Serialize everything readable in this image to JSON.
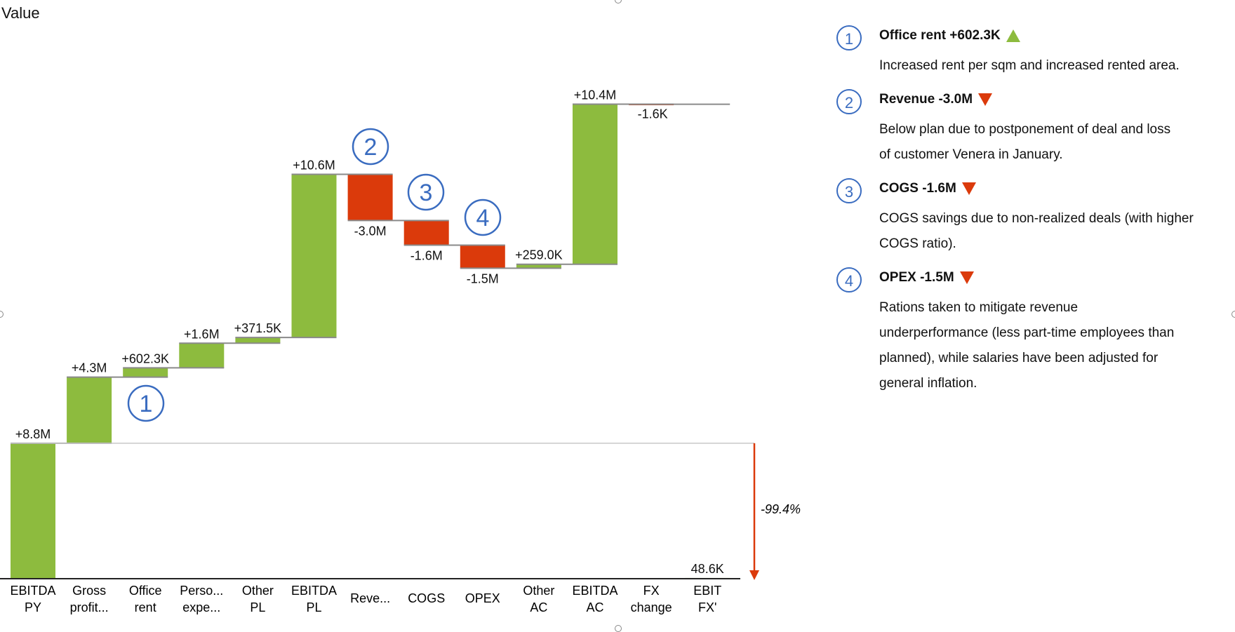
{
  "chart_data": {
    "type": "waterfall",
    "title": "Value",
    "categories": [
      [
        "EBITDA",
        "PY"
      ],
      [
        "Gross",
        "profit..."
      ],
      [
        "Office",
        "rent"
      ],
      [
        "Perso...",
        "expe..."
      ],
      [
        "Other",
        "PL"
      ],
      [
        "EBITDA",
        "PL"
      ],
      [
        "Reve..."
      ],
      [
        "COGS"
      ],
      [
        "OPEX"
      ],
      [
        "Other",
        "AC"
      ],
      [
        "EBITDA",
        "AC"
      ],
      [
        "FX",
        "change"
      ],
      [
        "EBIT",
        "FX'"
      ]
    ],
    "values": [
      8.8,
      4.3,
      0.6023,
      1.6,
      0.3715,
      10.6,
      -3.0,
      -1.6,
      -1.5,
      0.259,
      10.4,
      -0.0016,
      0.0486
    ],
    "kinds": [
      "total",
      "delta",
      "delta",
      "delta",
      "delta",
      "delta",
      "delta",
      "delta",
      "delta",
      "delta",
      "delta",
      "delta",
      "total"
    ],
    "data_labels": [
      "+8.8M",
      "+4.3M",
      "+602.3K",
      "+1.6M",
      "+371.5K",
      "+10.6M",
      "-3.0M",
      "-1.6M",
      "-1.5M",
      "+259.0K",
      "+10.4M",
      "-1.6K",
      "48.6K"
    ],
    "units": "M",
    "comparison": {
      "label": "-99.4%",
      "from_category": "EBITDA PY",
      "to_category": "EBIT FX'"
    },
    "markers": [
      {
        "n": "1",
        "category": "Office rent"
      },
      {
        "n": "2",
        "category": "Reve..."
      },
      {
        "n": "3",
        "category": "COGS"
      },
      {
        "n": "4",
        "category": "OPEX"
      }
    ],
    "colors": {
      "positive": "#8dbb3e",
      "negative": "#db3a0b",
      "arrow": "#db3a0b",
      "marker": "#3a6cc0",
      "connector": "#8a8a8a"
    }
  },
  "notes": [
    {
      "n": "1",
      "title": "Office rent +602.3K",
      "direction": "up",
      "lines": [
        "Increased rent per sqm and increased rented area."
      ]
    },
    {
      "n": "2",
      "title": "Revenue -3.0M",
      "direction": "down",
      "lines": [
        "Below plan due to postponement of deal and loss",
        "of customer Venera in January."
      ]
    },
    {
      "n": "3",
      "title": "COGS -1.6M",
      "direction": "down",
      "lines": [
        "COGS savings due to non-realized deals (with higher",
        "COGS ratio)."
      ]
    },
    {
      "n": "4",
      "title": "OPEX -1.5M",
      "direction": "down",
      "lines": [
        "Rations taken to mitigate revenue",
        "underperformance (less part-time employees than",
        "planned), while salaries have been adjusted for",
        "general inflation."
      ]
    }
  ]
}
